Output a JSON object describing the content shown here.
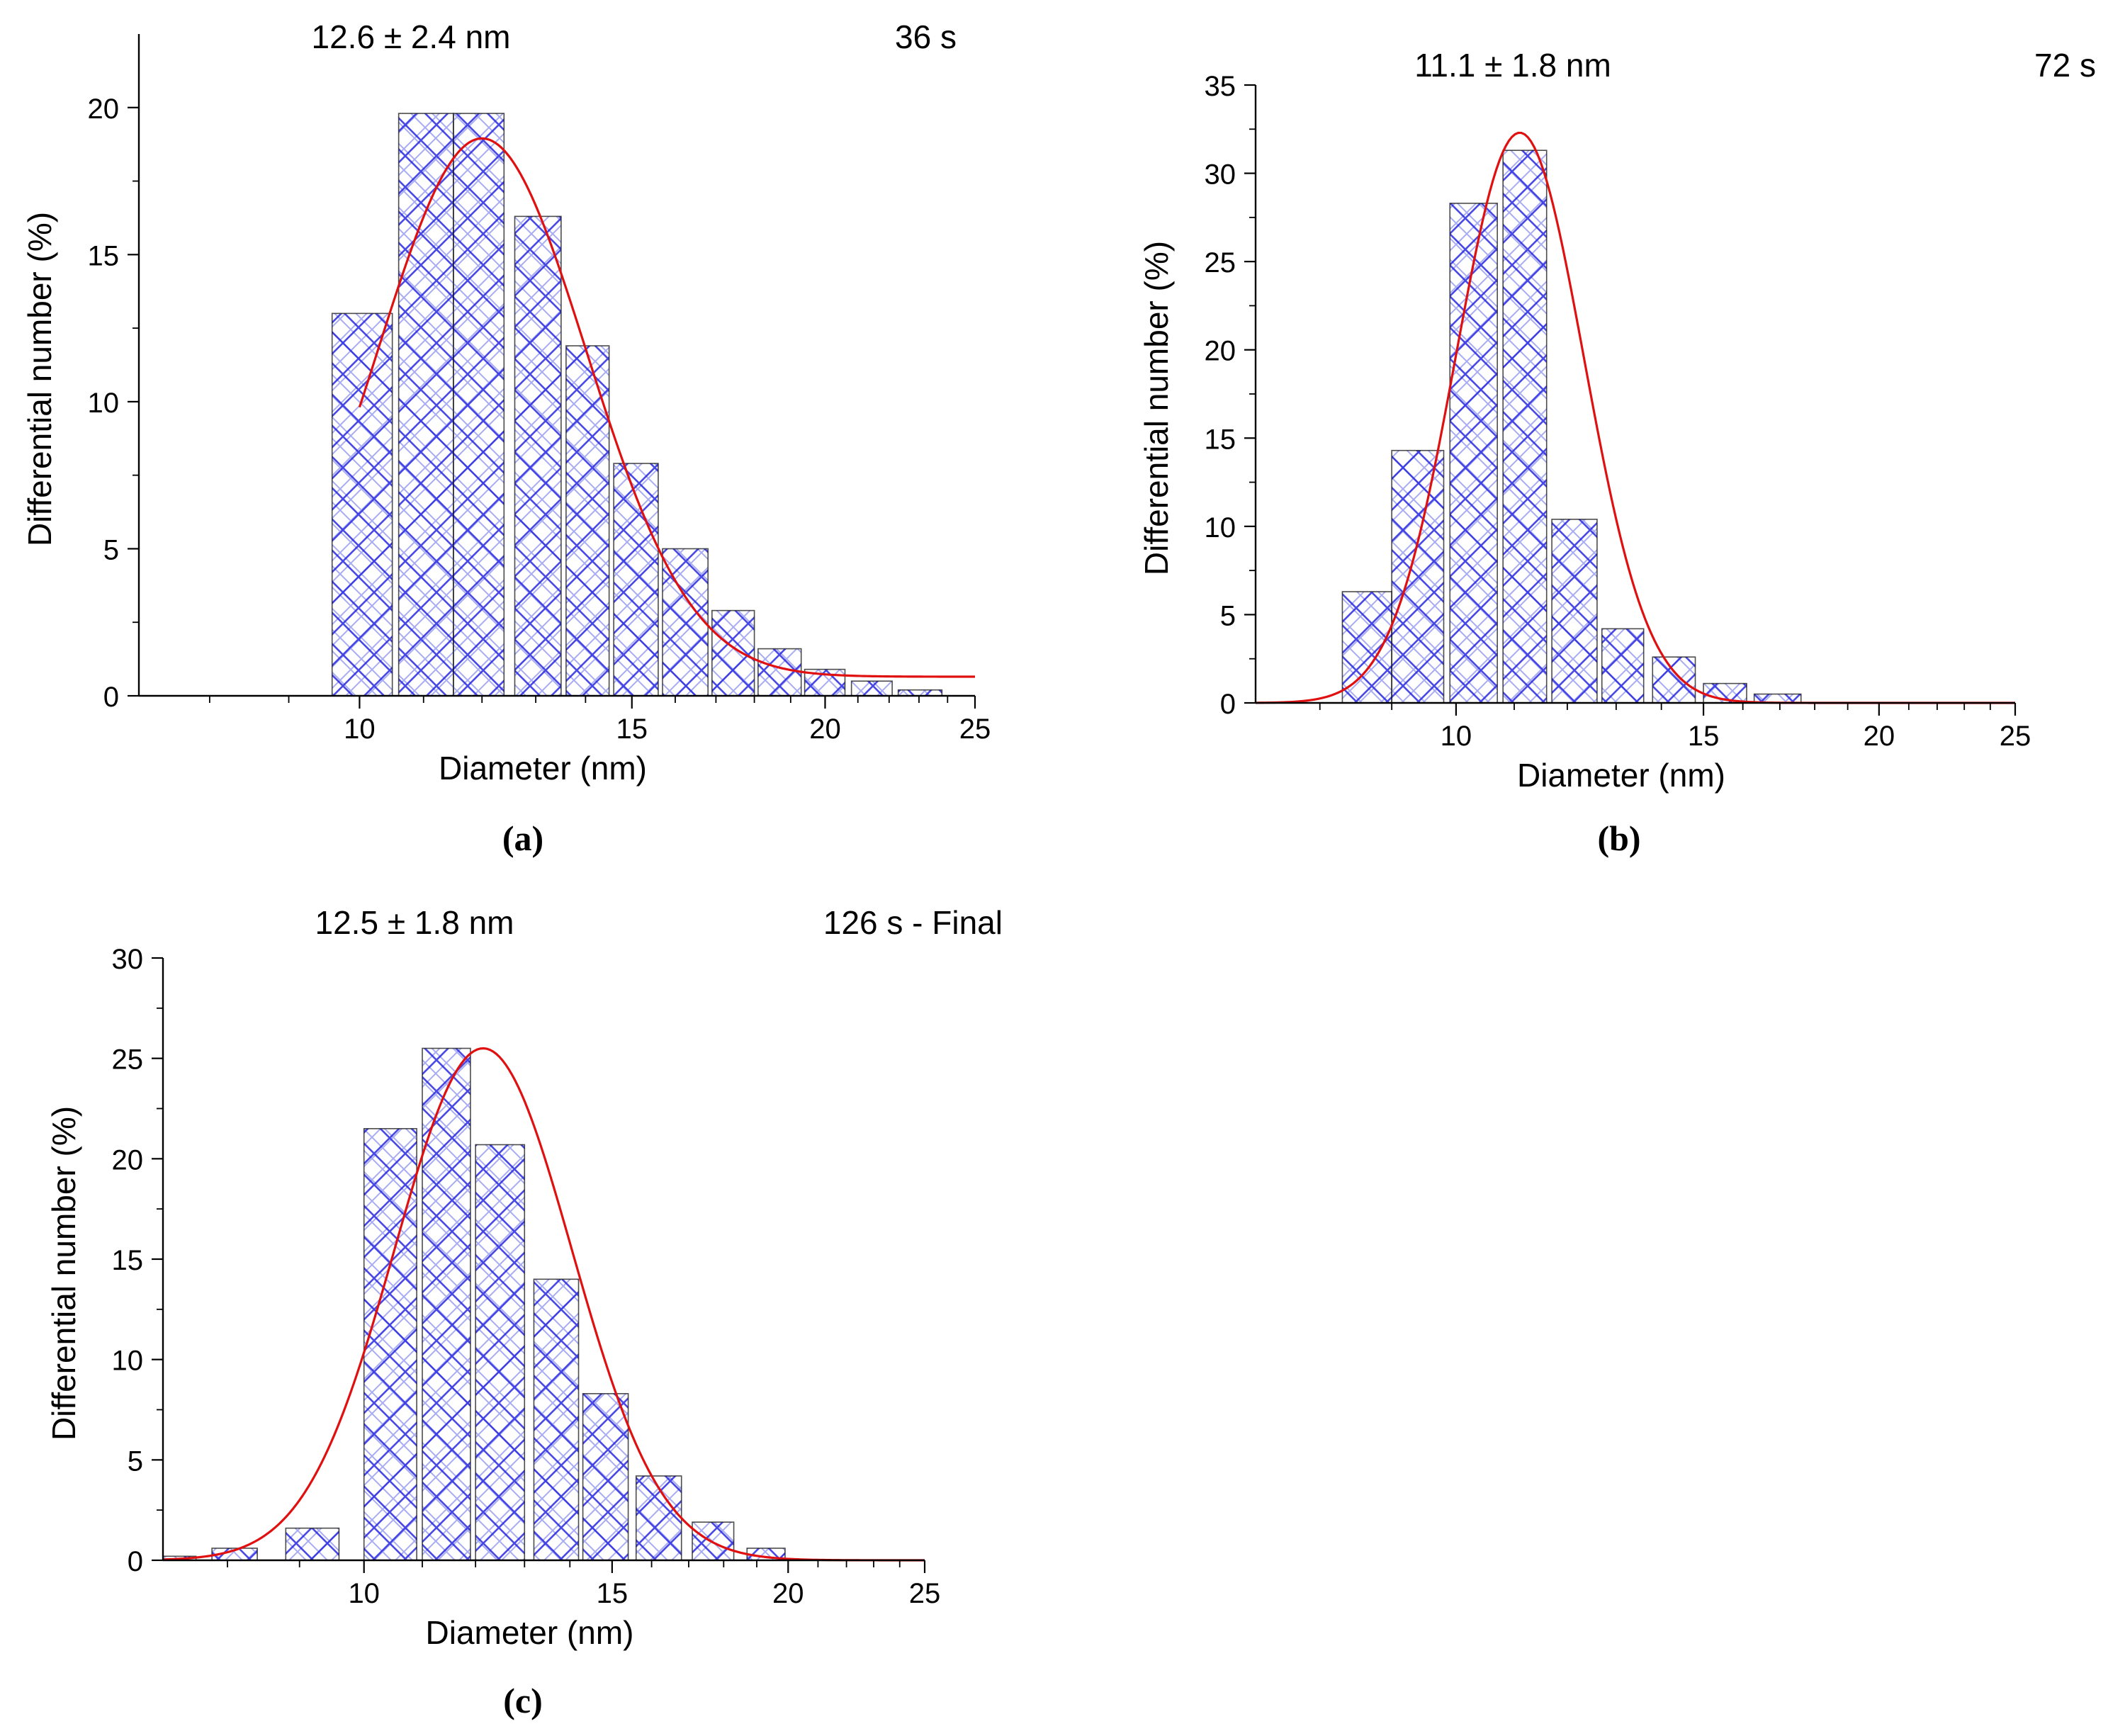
{
  "colors": {
    "bar_hatch": "#2a2ae0",
    "bar_hatch_light": "#9aa0f0",
    "bar_edge": "#111111",
    "fit_line": "#e01010",
    "axis": "#000000"
  },
  "chart_data": [
    {
      "id": "a",
      "type": "bar",
      "panel_label": "(a)",
      "stat_label": "12.6 ± 2.4 nm",
      "time_label": "36 s",
      "xlabel": "Diameter (nm)",
      "ylabel": "Differential number (%)",
      "xlim": [
        7.2,
        25
      ],
      "ylim": [
        0,
        22.5
      ],
      "x_scale": "log",
      "xticks": [
        10,
        15,
        20,
        25
      ],
      "xtick_labels": [
        "10",
        "15",
        "20",
        "25"
      ],
      "yticks": [
        0,
        5,
        10,
        15,
        20
      ],
      "ytick_labels": [
        "0",
        "5",
        "10",
        "15",
        "20"
      ],
      "bars": [
        {
          "x0": 9.6,
          "x1": 10.5,
          "value": 13.0
        },
        {
          "x0": 10.6,
          "x1": 11.5,
          "value": 19.8
        },
        {
          "x0": 11.5,
          "x1": 12.4,
          "value": 19.8
        },
        {
          "x0": 12.6,
          "x1": 13.5,
          "value": 16.3
        },
        {
          "x0": 13.6,
          "x1": 14.5,
          "value": 11.9
        },
        {
          "x0": 14.6,
          "x1": 15.6,
          "value": 7.9
        },
        {
          "x0": 15.7,
          "x1": 16.8,
          "value": 5.0
        },
        {
          "x0": 16.9,
          "x1": 18.0,
          "value": 2.9
        },
        {
          "x0": 18.1,
          "x1": 19.3,
          "value": 1.6
        },
        {
          "x0": 19.4,
          "x1": 20.6,
          "value": 0.9
        },
        {
          "x0": 20.8,
          "x1": 22.1,
          "value": 0.5
        },
        {
          "x0": 22.3,
          "x1": 23.8,
          "value": 0.2
        }
      ],
      "fit": {
        "type": "lognormal",
        "x_start": 10.0,
        "x_end": 25.0,
        "center": 12.0,
        "sigma": 0.155,
        "amplitude": 18.3,
        "baseline": 0.65
      }
    },
    {
      "id": "b",
      "type": "bar",
      "panel_label": "(b)",
      "stat_label": "11.1 ± 1.8 nm",
      "time_label": "72 s",
      "xlabel": "Diameter (nm)",
      "ylabel": "Differential number (%)",
      "xlim": [
        7.2,
        25
      ],
      "ylim": [
        0,
        35
      ],
      "x_scale": "log",
      "xticks": [
        10,
        15,
        20,
        25
      ],
      "xtick_labels": [
        "10",
        "15",
        "20",
        "25"
      ],
      "yticks": [
        0,
        5,
        10,
        15,
        20,
        25,
        30,
        35
      ],
      "ytick_labels": [
        "0",
        "5",
        "10",
        "15",
        "20",
        "25",
        "30",
        "35"
      ],
      "bars": [
        {
          "x0": 8.3,
          "x1": 9.0,
          "value": 6.3
        },
        {
          "x0": 9.0,
          "x1": 9.8,
          "value": 14.3
        },
        {
          "x0": 9.9,
          "x1": 10.7,
          "value": 28.3
        },
        {
          "x0": 10.8,
          "x1": 11.6,
          "value": 31.3
        },
        {
          "x0": 11.7,
          "x1": 12.6,
          "value": 10.4
        },
        {
          "x0": 12.7,
          "x1": 13.6,
          "value": 4.2
        },
        {
          "x0": 13.8,
          "x1": 14.8,
          "value": 2.6
        },
        {
          "x0": 15.0,
          "x1": 16.1,
          "value": 1.1
        },
        {
          "x0": 16.3,
          "x1": 17.6,
          "value": 0.5
        }
      ],
      "fit": {
        "type": "lognormal",
        "x_start": 7.2,
        "x_end": 25.0,
        "center": 11.1,
        "sigma": 0.105,
        "amplitude": 32.3,
        "baseline": 0.0
      }
    },
    {
      "id": "c",
      "type": "bar",
      "panel_label": "(c)",
      "stat_label": "12.5 ± 1.8 nm",
      "time_label": "126 s - Final",
      "xlabel": "Diameter (nm)",
      "ylabel": "Differential number (%)",
      "xlim": [
        7.2,
        25
      ],
      "ylim": [
        0,
        30
      ],
      "x_scale": "log",
      "xticks": [
        10,
        15,
        20,
        25
      ],
      "xtick_labels": [
        "10",
        "15",
        "20",
        "25"
      ],
      "yticks": [
        0,
        5,
        10,
        15,
        20,
        25,
        30
      ],
      "ytick_labels": [
        "0",
        "5",
        "10",
        "15",
        "20",
        "25",
        "30"
      ],
      "bars": [
        {
          "x0": 7.2,
          "x1": 7.6,
          "value": 0.2
        },
        {
          "x0": 7.8,
          "x1": 8.4,
          "value": 0.6
        },
        {
          "x0": 8.8,
          "x1": 9.6,
          "value": 1.6
        },
        {
          "x0": 10.0,
          "x1": 10.9,
          "value": 21.5
        },
        {
          "x0": 11.0,
          "x1": 11.9,
          "value": 25.5
        },
        {
          "x0": 12.0,
          "x1": 13.0,
          "value": 20.7
        },
        {
          "x0": 13.2,
          "x1": 14.2,
          "value": 14.0
        },
        {
          "x0": 14.3,
          "x1": 15.4,
          "value": 8.3
        },
        {
          "x0": 15.6,
          "x1": 16.8,
          "value": 4.2
        },
        {
          "x0": 17.1,
          "x1": 18.3,
          "value": 1.9
        },
        {
          "x0": 18.7,
          "x1": 19.9,
          "value": 0.6
        }
      ],
      "fit": {
        "type": "lognormal",
        "x_start": 7.2,
        "x_end": 25.0,
        "center": 12.15,
        "sigma": 0.145,
        "amplitude": 25.5,
        "baseline": 0.0
      }
    }
  ]
}
